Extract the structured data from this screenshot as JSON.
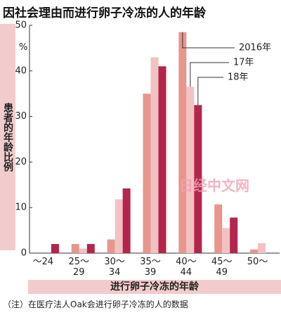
{
  "chart_data": {
    "type": "bar",
    "title": "因社会理由而进行卵子冷冻的人的年龄",
    "y_label": "患者的年龄比例",
    "y_unit": "%",
    "x_label": "进行卵子冷冻的年龄",
    "note": "（注）在医疗法人Oak会进行卵子冷冻的人的数据",
    "watermark": "日经中文网",
    "categories": [
      "〜24",
      "25〜\n29",
      "30〜\n34",
      "35〜\n39",
      "40〜\n44",
      "45〜\n49",
      "50〜"
    ],
    "series": [
      {
        "name": "2016年",
        "color": "#e8958e",
        "values": [
          0,
          2.0,
          3.0,
          35,
          48.5,
          10.7,
          0.8
        ]
      },
      {
        "name": "17年",
        "color": "#f2c2c2",
        "values": [
          0,
          1.0,
          11.8,
          43,
          36.5,
          5.5,
          2.2
        ]
      },
      {
        "name": "18年",
        "color": "#b3254a",
        "values": [
          2.0,
          2.0,
          14.2,
          41,
          32.5,
          7.8,
          0
        ]
      }
    ],
    "ylim": [
      0,
      50
    ],
    "yticks": [
      0,
      10,
      20,
      30,
      40,
      50
    ]
  }
}
